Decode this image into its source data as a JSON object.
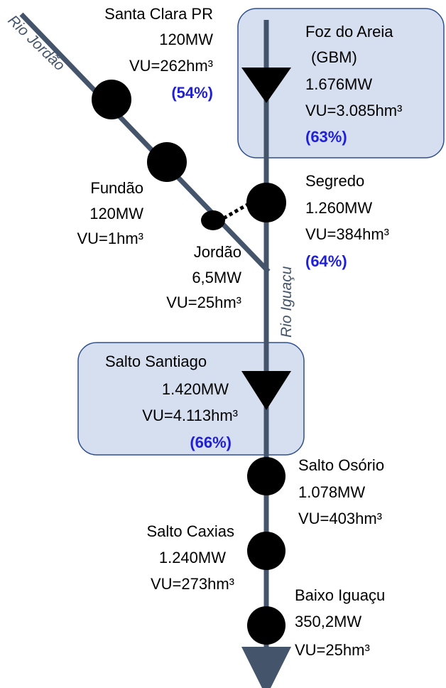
{
  "rivers": [
    {
      "label": "Rio Jordão"
    },
    {
      "label": "Rio Iguaçu"
    }
  ],
  "plants": [
    {
      "name": "Santa Clara PR",
      "power": "120MW",
      "volume": "VU=262hm³",
      "storage": "(54%)"
    },
    {
      "name": "Foz do Areia",
      "note": "(GBM)",
      "power": "1.676MW",
      "volume": "VU=3.085hm³",
      "storage": "(63%)"
    },
    {
      "name": "Fundão",
      "power": "120MW",
      "volume": "VU=1hm³"
    },
    {
      "name": "Segredo",
      "power": "1.260MW",
      "volume": "VU=384hm³",
      "storage": "(64%)"
    },
    {
      "name": "Jordão",
      "power": "6,5MW",
      "volume": "VU=25hm³"
    },
    {
      "name": "Salto Santiago",
      "power": "1.420MW",
      "volume": "VU=4.113hm³",
      "storage": "(66%)"
    },
    {
      "name": "Salto Osório",
      "power": "1.078MW",
      "volume": "VU=403hm³"
    },
    {
      "name": "Salto Caxias",
      "power": "1.240MW",
      "volume": "VU=273hm³"
    },
    {
      "name": "Baixo Iguaçu",
      "power": "350,2MW",
      "volume": "VU=25hm³"
    }
  ]
}
